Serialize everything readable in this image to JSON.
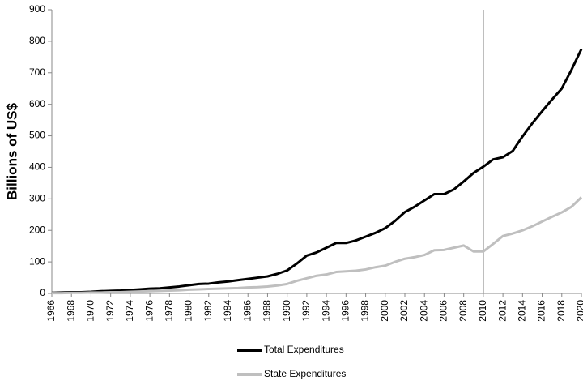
{
  "chart_data": {
    "type": "line",
    "y_label": "Billions of US$",
    "x": [
      1966,
      1967,
      1968,
      1969,
      1970,
      1971,
      1972,
      1973,
      1974,
      1975,
      1976,
      1977,
      1978,
      1979,
      1980,
      1981,
      1982,
      1983,
      1984,
      1985,
      1986,
      1987,
      1988,
      1989,
      1990,
      1991,
      1992,
      1993,
      1994,
      1995,
      1996,
      1997,
      1998,
      1999,
      2000,
      2001,
      2002,
      2003,
      2004,
      2005,
      2006,
      2007,
      2008,
      2009,
      2010,
      2011,
      2012,
      2013,
      2014,
      2015,
      2016,
      2017,
      2018,
      2019,
      2020
    ],
    "series": [
      {
        "name": "Total Expenditures",
        "color": "#000000",
        "values": [
          2,
          3,
          4,
          4,
          5,
          7,
          8,
          9,
          11,
          13,
          15,
          16,
          19,
          22,
          26,
          30,
          31,
          35,
          38,
          42,
          46,
          50,
          54,
          62,
          73,
          95,
          120,
          130,
          145,
          160,
          160,
          168,
          180,
          192,
          207,
          230,
          258,
          275,
          295,
          315,
          315,
          330,
          355,
          382,
          402,
          425,
          432,
          452,
          498,
          540,
          578,
          615,
          650,
          710,
          775
        ]
      },
      {
        "name": "State Expenditures",
        "color": "#bfbfbf",
        "values": [
          1,
          1,
          2,
          2,
          3,
          3,
          4,
          4,
          5,
          6,
          7,
          8,
          9,
          10,
          12,
          13,
          14,
          15,
          16,
          17,
          19,
          20,
          22,
          25,
          30,
          40,
          48,
          56,
          60,
          68,
          70,
          72,
          76,
          83,
          88,
          100,
          110,
          115,
          122,
          137,
          138,
          145,
          152,
          133,
          133,
          157,
          182,
          190,
          200,
          213,
          228,
          243,
          257,
          275,
          305
        ]
      }
    ],
    "xlim": [
      1966,
      2020
    ],
    "xticks": [
      1966,
      1968,
      1970,
      1972,
      1974,
      1976,
      1978,
      1980,
      1982,
      1984,
      1986,
      1988,
      1990,
      1992,
      1994,
      1996,
      1998,
      2000,
      2002,
      2004,
      2006,
      2008,
      2010,
      2012,
      2014,
      2016,
      2018,
      2020
    ],
    "ylim": [
      0,
      900
    ],
    "yticks": [
      0,
      100,
      200,
      300,
      400,
      500,
      600,
      700,
      800,
      900
    ],
    "vline": 2010,
    "legend": "bottom"
  }
}
